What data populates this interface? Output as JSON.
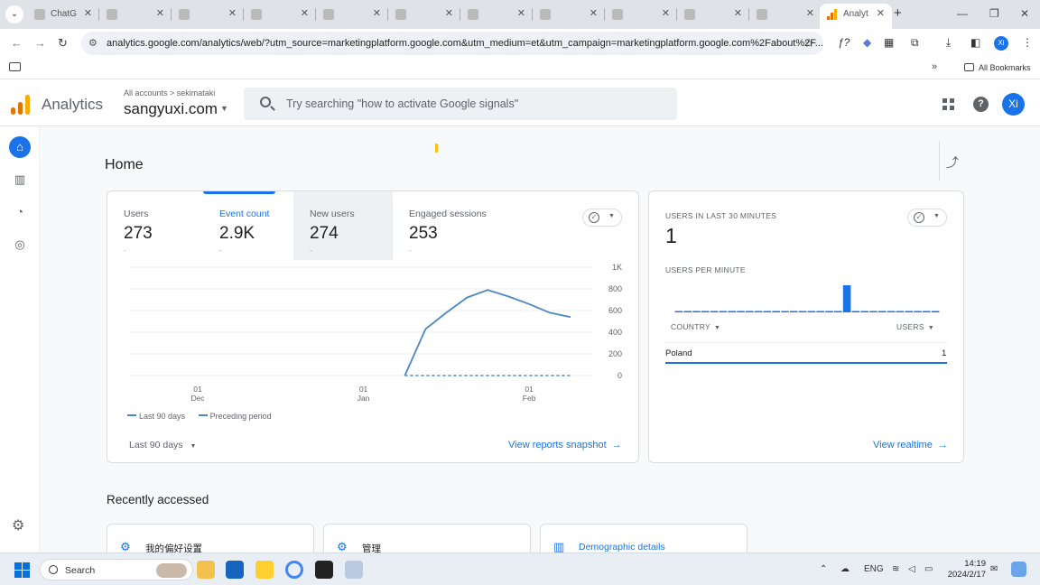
{
  "browser": {
    "tabs": [
      {
        "title": "ChatG",
        "active": false
      },
      {
        "title": "",
        "active": false
      },
      {
        "title": "",
        "active": false
      },
      {
        "title": "",
        "active": false
      },
      {
        "title": "",
        "active": false
      },
      {
        "title": "",
        "active": false
      },
      {
        "title": "",
        "active": false
      },
      {
        "title": "",
        "active": false
      },
      {
        "title": "",
        "active": false
      },
      {
        "title": "",
        "active": false
      },
      {
        "title": "",
        "active": false
      },
      {
        "title": "Analyt",
        "active": true
      }
    ],
    "url": "analytics.google.com/analytics/web/?utm_source=marketingplatform.google.com&utm_medium=et&utm_campaign=marketingplatform.google.com%2Fabout%2F...",
    "profile_initial": "Xi",
    "bookmarks_all": "All Bookmarks"
  },
  "ga": {
    "product": "Analytics",
    "breadcrumb": "All accounts > sekimataki",
    "property": "sangyuxi.com",
    "search_placeholder": "Try searching \"how to activate Google signals\"",
    "user_initial": "Xi",
    "help_glyph": "?"
  },
  "home": {
    "title": "Home",
    "metrics": [
      {
        "label": "Users",
        "value": "273",
        "change": "-"
      },
      {
        "label": "Event count",
        "value": "2.9K",
        "change": "-"
      },
      {
        "label": "New users",
        "value": "274",
        "change": "-"
      },
      {
        "label": "Engaged sessions",
        "value": "253",
        "change": "-"
      }
    ],
    "date_range": "Last 90 days",
    "view_snapshot": "View reports snapshot",
    "recently_accessed": "Recently accessed",
    "recent": [
      {
        "label": "我的偏好设置",
        "icon": "gear-icon"
      },
      {
        "label": "管理",
        "icon": "gear-icon"
      },
      {
        "label": "Demographic details",
        "icon": "bar-chart-icon"
      }
    ]
  },
  "chart_data": {
    "type": "line",
    "x_tick_labels": [
      {
        "day": "01",
        "month": "Dec"
      },
      {
        "day": "01",
        "month": "Jan"
      },
      {
        "day": "01",
        "month": "Feb"
      }
    ],
    "x_tick_index": [
      0,
      8,
      16
    ],
    "y_tick_labels": [
      "1K",
      "800",
      "600",
      "400",
      "200",
      "0"
    ],
    "ylim": [
      0,
      1000
    ],
    "series": [
      {
        "name": "Last 90 days",
        "style": "solid",
        "x_index": [
          10,
          11,
          12,
          13,
          14,
          15,
          16,
          17,
          18
        ],
        "values": [
          0,
          430,
          580,
          720,
          790,
          730,
          660,
          580,
          540
        ]
      },
      {
        "name": "Preceding period",
        "style": "dashed",
        "x_index": [
          10,
          11,
          12,
          13,
          14,
          15,
          16,
          17,
          18
        ],
        "values": [
          0,
          0,
          0,
          0,
          0,
          0,
          0,
          0,
          0
        ]
      }
    ],
    "color": "#4a86c8",
    "legend": "bottom-left"
  },
  "realtime": {
    "title": "USERS IN LAST 30 MINUTES",
    "value": "1",
    "per_minute_title": "USERS PER MINUTE",
    "per_minute": [
      0,
      0,
      0,
      0,
      0,
      0,
      0,
      0,
      0,
      0,
      0,
      0,
      0,
      0,
      0,
      0,
      0,
      0,
      0,
      1,
      0,
      0,
      0,
      0,
      0,
      0,
      0,
      0,
      0,
      0
    ],
    "col_country": "COUNTRY",
    "col_users": "USERS",
    "rows": [
      {
        "country": "Poland",
        "users": "1"
      }
    ],
    "view_realtime": "View realtime"
  },
  "taskbar": {
    "search_label": "Search",
    "lang": "ENG",
    "time": "14:19",
    "date": "2024/2/17"
  }
}
